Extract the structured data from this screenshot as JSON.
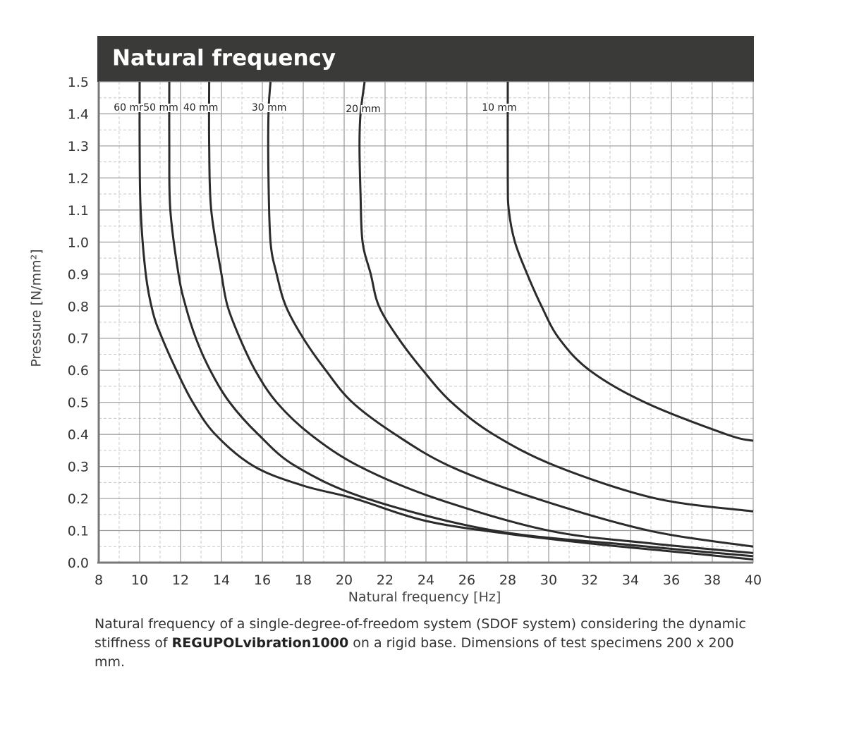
{
  "chart_data": {
    "type": "line",
    "title": "Natural frequency",
    "x_label": "Natural frequency [Hz]",
    "y_label": "Pressure [N/mm²]",
    "xlim": [
      8,
      40
    ],
    "xticks": [
      8,
      10,
      12,
      14,
      16,
      18,
      20,
      22,
      24,
      26,
      28,
      30,
      32,
      34,
      36,
      38,
      40
    ],
    "ylim": [
      0,
      1.5
    ],
    "yticks": [
      {
        "value": 0,
        "label": "0.0"
      },
      0.1,
      0.2,
      0.3,
      0.4,
      0.5,
      0.6,
      0.7,
      0.8,
      0.9,
      {
        "value": 1,
        "label": "1.0"
      },
      1.1,
      1.2,
      1.3,
      1.4,
      1.5
    ],
    "grid": true,
    "minor_grid": true,
    "series": [
      {
        "name": "60 mm",
        "color": "#2b2b2b",
        "x": [
          10.0,
          10.0,
          10.05,
          10.3,
          10.65,
          11.1,
          11.8,
          12.6,
          13.7,
          15.6,
          18.0,
          20.5,
          24,
          28,
          32,
          36,
          40
        ],
        "values": [
          1.5,
          1.3,
          1.1,
          0.9,
          0.78,
          0.7,
          0.6,
          0.5,
          0.4,
          0.3,
          0.24,
          0.2,
          0.13,
          0.09,
          0.06,
          0.035,
          0.01
        ]
      },
      {
        "name": "50 mm",
        "color": "#2b2b2b",
        "x": [
          11.45,
          11.45,
          11.5,
          11.9,
          12.25,
          12.75,
          13.45,
          14.4,
          15.8,
          17.65,
          21.1,
          27.3,
          34,
          40
        ],
        "values": [
          1.5,
          1.3,
          1.1,
          0.9,
          0.8,
          0.7,
          0.6,
          0.5,
          0.4,
          0.3,
          0.2,
          0.1,
          0.055,
          0.02
        ]
      },
      {
        "name": "40 mm",
        "color": "#2b2b2b",
        "x": [
          13.4,
          13.4,
          13.5,
          14.0,
          14.3,
          14.9,
          15.65,
          16.7,
          18.35,
          20.75,
          24.5,
          30,
          35,
          40
        ],
        "values": [
          1.5,
          1.3,
          1.1,
          0.9,
          0.8,
          0.7,
          0.6,
          0.5,
          0.4,
          0.3,
          0.2,
          0.1,
          0.06,
          0.03
        ]
      },
      {
        "name": "30 mm",
        "color": "#2b2b2b",
        "x": [
          16.4,
          16.3,
          16.3,
          16.4,
          16.7,
          17.15,
          18.0,
          19.1,
          20.4,
          22.5,
          25.2,
          29.4,
          34.9,
          40
        ],
        "values": [
          1.5,
          1.4,
          1.2,
          1.0,
          0.9,
          0.8,
          0.7,
          0.6,
          0.5,
          0.4,
          0.3,
          0.2,
          0.1,
          0.05
        ]
      },
      {
        "name": "20 mm",
        "color": "#2b2b2b",
        "x": [
          21.0,
          20.8,
          20.75,
          20.8,
          20.9,
          21.3,
          21.7,
          22.65,
          23.85,
          25.25,
          27.3,
          30.4,
          35.25,
          40
        ],
        "values": [
          1.5,
          1.4,
          1.3,
          1.15,
          1.0,
          0.9,
          0.8,
          0.7,
          0.6,
          0.5,
          0.4,
          0.3,
          0.2,
          0.16
        ]
      },
      {
        "name": "10 mm",
        "color": "#2b2b2b",
        "x": [
          28.0,
          28.0,
          28.05,
          28.35,
          28.95,
          29.65,
          30.5,
          32.0,
          34.7,
          38.7,
          40
        ],
        "values": [
          1.5,
          1.2,
          1.1,
          1.0,
          0.9,
          0.8,
          0.7,
          0.6,
          0.5,
          0.4,
          0.38
        ]
      }
    ],
    "caption": [
      "Natural frequency of a single-degree-of-freedom system (SDOF system) considering the dynamic stiffness of ",
      "REGUPOLvibration1000",
      " on a rigid base. Dimensions of test specimens 200 x 200 mm."
    ]
  }
}
